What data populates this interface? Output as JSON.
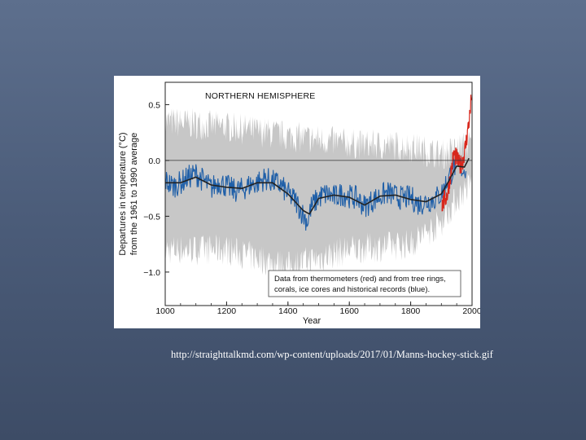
{
  "slide": {
    "background_top": "#5d6f8d",
    "background_bottom": "#3d4c66",
    "source_url": "http://straighttalkmd.com/wp-content/uploads/2017/01/Manns-hockey-stick.gif"
  },
  "chart_data": {
    "type": "line",
    "title": "NORTHERN HEMISPHERE",
    "xlabel": "Year",
    "ylabel_line1": "Departures in temperature (°C)",
    "ylabel_line2": "from the 1961 to 1990 average",
    "xlim": [
      1000,
      2000
    ],
    "ylim": [
      -1.3,
      0.7
    ],
    "x_ticks": [
      1000,
      1200,
      1400,
      1600,
      1800,
      2000
    ],
    "x_tick_labels": [
      "1000",
      "1200",
      "1400",
      "1600",
      "1800",
      "2000"
    ],
    "y_ticks": [
      0.5,
      0.0,
      -0.5,
      -1.0
    ],
    "y_tick_labels": [
      "0.5",
      "0.0",
      "−0.5",
      "−1.0"
    ],
    "annotation_line1": "Data from thermometers (red) and from tree rings,",
    "annotation_line2": "corals, ice cores and historical records (blue).",
    "colors": {
      "proxy": "#1f5fa8",
      "thermometer": "#d8271c",
      "smoothed": "#222222",
      "uncertainty": "#bdbdbd"
    },
    "series": [
      {
        "name": "tree rings, corals, ice cores and historical records",
        "color": "blue",
        "x": [
          1000,
          1025,
          1050,
          1075,
          1100,
          1125,
          1150,
          1175,
          1200,
          1225,
          1250,
          1275,
          1300,
          1325,
          1350,
          1375,
          1400,
          1425,
          1450,
          1465,
          1475,
          1500,
          1525,
          1550,
          1575,
          1600,
          1625,
          1650,
          1675,
          1700,
          1725,
          1750,
          1775,
          1800,
          1825,
          1850,
          1875,
          1900,
          1925,
          1950,
          1975,
          1980
        ],
        "y": [
          -0.18,
          -0.23,
          -0.2,
          -0.15,
          -0.12,
          -0.18,
          -0.25,
          -0.19,
          -0.23,
          -0.27,
          -0.26,
          -0.22,
          -0.2,
          -0.16,
          -0.19,
          -0.22,
          -0.3,
          -0.36,
          -0.49,
          -0.55,
          -0.42,
          -0.33,
          -0.3,
          -0.33,
          -0.3,
          -0.32,
          -0.34,
          -0.41,
          -0.36,
          -0.32,
          -0.29,
          -0.32,
          -0.34,
          -0.33,
          -0.39,
          -0.37,
          -0.35,
          -0.3,
          -0.15,
          -0.02,
          -0.09,
          -0.05
        ]
      },
      {
        "name": "thermometers",
        "color": "red",
        "x": [
          1902,
          1920,
          1940,
          1950,
          1960,
          1970,
          1980,
          1990,
          1995,
          1998
        ],
        "y": [
          -0.4,
          -0.3,
          0.05,
          0.02,
          -0.05,
          0.0,
          0.15,
          0.35,
          0.45,
          0.62
        ]
      },
      {
        "name": "smoothed reconstruction",
        "color": "black",
        "x": [
          1000,
          1050,
          1100,
          1150,
          1200,
          1250,
          1300,
          1350,
          1400,
          1450,
          1470,
          1500,
          1550,
          1600,
          1650,
          1700,
          1750,
          1800,
          1850,
          1900,
          1925,
          1950,
          1975,
          1990
        ],
        "y": [
          -0.2,
          -0.2,
          -0.15,
          -0.22,
          -0.24,
          -0.25,
          -0.2,
          -0.2,
          -0.3,
          -0.45,
          -0.48,
          -0.34,
          -0.31,
          -0.33,
          -0.4,
          -0.32,
          -0.31,
          -0.35,
          -0.37,
          -0.3,
          -0.18,
          -0.05,
          -0.06,
          0.02
        ]
      }
    ],
    "uncertainty_band": {
      "x": [
        1000,
        1200,
        1400,
        1600,
        1800,
        1900,
        1950,
        1998
      ],
      "upper": [
        0.35,
        0.3,
        0.22,
        0.15,
        0.12,
        0.05,
        0.1,
        0.15
      ],
      "lower": [
        -0.8,
        -0.8,
        -0.95,
        -0.8,
        -0.75,
        -0.55,
        -0.35,
        -0.2
      ]
    },
    "grid": false,
    "zero_line": true
  }
}
